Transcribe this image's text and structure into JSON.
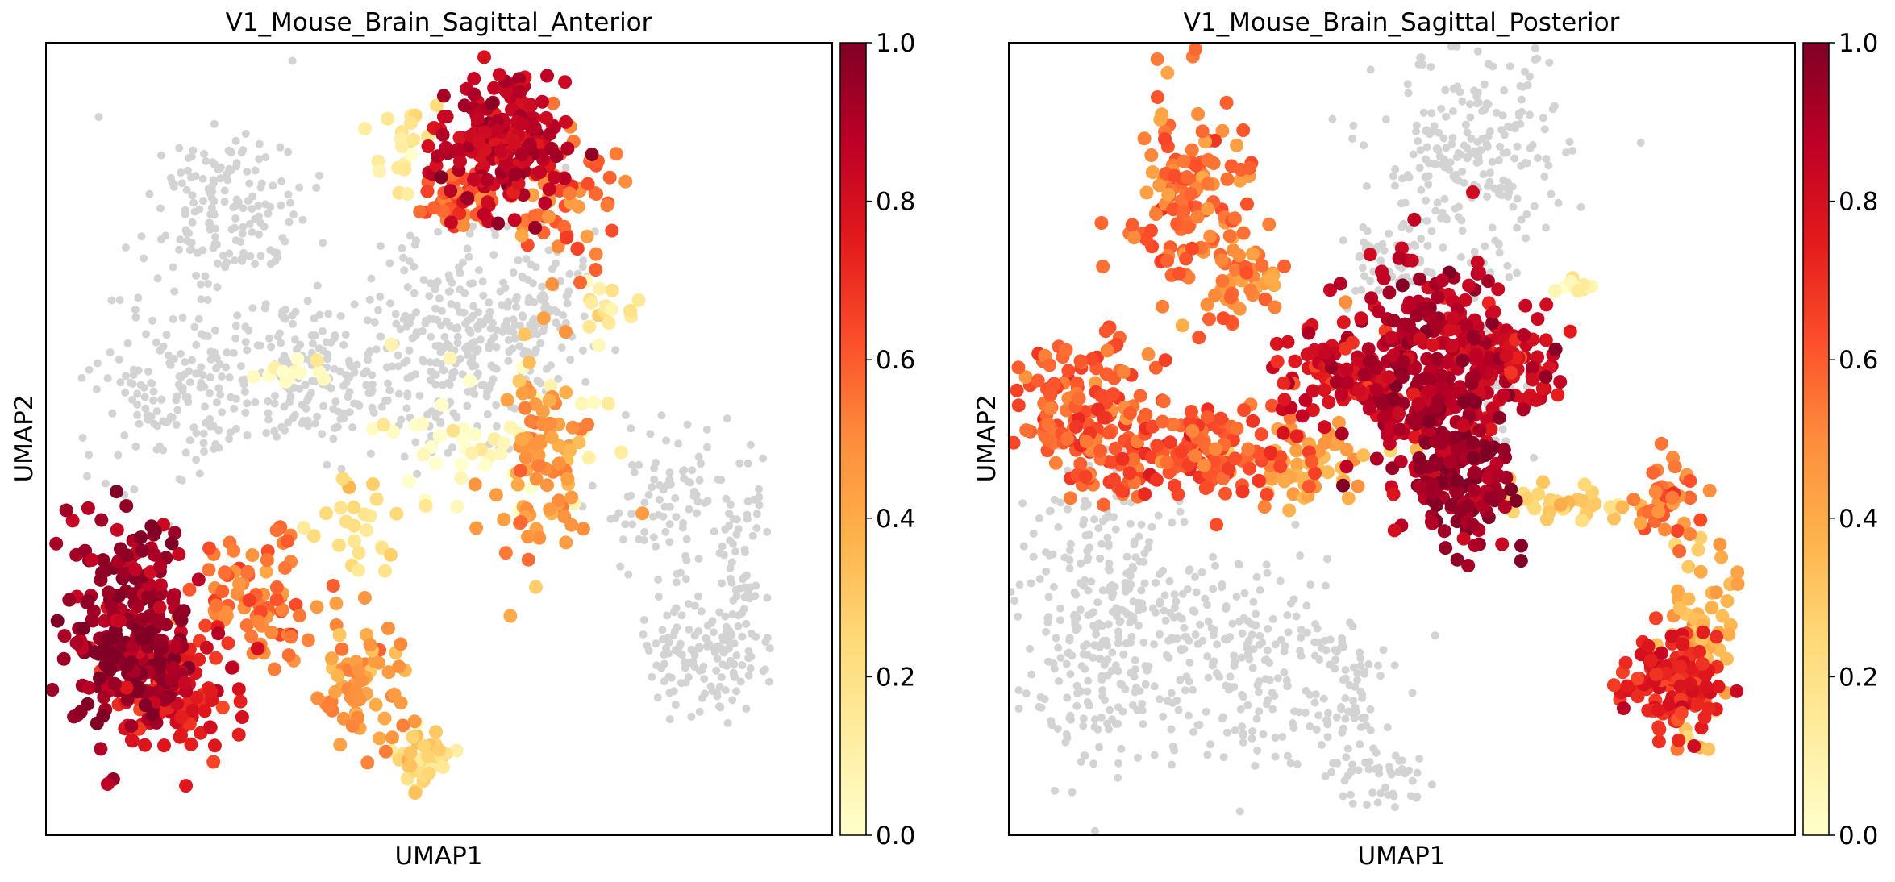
{
  "chart_data": [
    {
      "type": "scatter",
      "title": "V1_Mouse_Brain_Sagittal_Anterior",
      "xlabel": "UMAP1",
      "ylabel": "UMAP2",
      "x_ticks": "none",
      "y_ticks": "none",
      "colorbar": {
        "colormap": "YlOrRd",
        "range": [
          0.0,
          1.0
        ],
        "ticks": [
          "0.0",
          "0.2",
          "0.4",
          "0.6",
          "0.8",
          "1.0"
        ]
      },
      "null_color": "#d3d3d3",
      "clusters": [
        {
          "x": 0.23,
          "y": 0.78,
          "sx": 0.05,
          "sy": 0.06,
          "n": 180,
          "v": null
        },
        {
          "x": 0.17,
          "y": 0.56,
          "sx": 0.06,
          "sy": 0.05,
          "n": 160,
          "v": null
        },
        {
          "x": 0.36,
          "y": 0.58,
          "sx": 0.07,
          "sy": 0.05,
          "n": 180,
          "v": null
        },
        {
          "x": 0.52,
          "y": 0.62,
          "sx": 0.05,
          "sy": 0.07,
          "n": 220,
          "v": null
        },
        {
          "x": 0.62,
          "y": 0.66,
          "sx": 0.04,
          "sy": 0.05,
          "n": 120,
          "v": null
        },
        {
          "x": 0.8,
          "y": 0.42,
          "sx": 0.05,
          "sy": 0.05,
          "n": 100,
          "v": null
        },
        {
          "x": 0.83,
          "y": 0.22,
          "sx": 0.04,
          "sy": 0.04,
          "n": 120,
          "v": null
        },
        {
          "x": 0.88,
          "y": 0.32,
          "sx": 0.02,
          "sy": 0.06,
          "n": 60,
          "v": null
        },
        {
          "x": 0.58,
          "y": 0.87,
          "sx": 0.04,
          "sy": 0.04,
          "n": 200,
          "v": 0.85
        },
        {
          "x": 0.53,
          "y": 0.8,
          "sx": 0.02,
          "sy": 0.02,
          "n": 40,
          "v": 0.6
        },
        {
          "x": 0.66,
          "y": 0.8,
          "sx": 0.03,
          "sy": 0.05,
          "n": 60,
          "v": 0.55
        },
        {
          "x": 0.72,
          "y": 0.66,
          "sx": 0.02,
          "sy": 0.02,
          "n": 15,
          "v": 0.15
        },
        {
          "x": 0.45,
          "y": 0.88,
          "sx": 0.02,
          "sy": 0.03,
          "n": 20,
          "v": 0.15
        },
        {
          "x": 0.63,
          "y": 0.47,
          "sx": 0.03,
          "sy": 0.07,
          "n": 90,
          "v": 0.45
        },
        {
          "x": 0.55,
          "y": 0.5,
          "sx": 0.07,
          "sy": 0.04,
          "n": 50,
          "v": 0.05
        },
        {
          "x": 0.32,
          "y": 0.58,
          "sx": 0.02,
          "sy": 0.01,
          "n": 15,
          "v": 0.05
        },
        {
          "x": 0.11,
          "y": 0.26,
          "sx": 0.04,
          "sy": 0.07,
          "n": 260,
          "v": 0.95
        },
        {
          "x": 0.17,
          "y": 0.18,
          "sx": 0.04,
          "sy": 0.04,
          "n": 120,
          "v": 0.75
        },
        {
          "x": 0.27,
          "y": 0.3,
          "sx": 0.04,
          "sy": 0.04,
          "n": 80,
          "v": 0.55
        },
        {
          "x": 0.4,
          "y": 0.19,
          "sx": 0.03,
          "sy": 0.04,
          "n": 70,
          "v": 0.45
        },
        {
          "x": 0.48,
          "y": 0.09,
          "sx": 0.02,
          "sy": 0.02,
          "n": 45,
          "v": 0.25
        },
        {
          "x": 0.4,
          "y": 0.38,
          "sx": 0.03,
          "sy": 0.04,
          "n": 25,
          "v": 0.2
        }
      ]
    },
    {
      "type": "scatter",
      "title": "V1_Mouse_Brain_Sagittal_Posterior",
      "xlabel": "UMAP1",
      "ylabel": "UMAP2",
      "x_ticks": "none",
      "y_ticks": "none",
      "colorbar": {
        "colormap": "YlOrRd",
        "range": [
          0.0,
          1.0
        ],
        "ticks": [
          "0.0",
          "0.2",
          "0.4",
          "0.6",
          "0.8",
          "1.0"
        ]
      },
      "null_color": "#d3d3d3",
      "clusters": [
        {
          "x": 0.59,
          "y": 0.85,
          "sx": 0.06,
          "sy": 0.07,
          "n": 240,
          "v": null
        },
        {
          "x": 0.48,
          "y": 0.72,
          "sx": 0.03,
          "sy": 0.03,
          "n": 50,
          "v": null
        },
        {
          "x": 0.62,
          "y": 0.58,
          "sx": 0.02,
          "sy": 0.05,
          "n": 40,
          "v": null
        },
        {
          "x": 0.13,
          "y": 0.27,
          "sx": 0.06,
          "sy": 0.09,
          "n": 320,
          "v": null
        },
        {
          "x": 0.29,
          "y": 0.23,
          "sx": 0.06,
          "sy": 0.07,
          "n": 170,
          "v": null
        },
        {
          "x": 0.41,
          "y": 0.18,
          "sx": 0.04,
          "sy": 0.06,
          "n": 90,
          "v": null
        },
        {
          "x": 0.48,
          "y": 0.07,
          "sx": 0.03,
          "sy": 0.02,
          "n": 40,
          "v": null
        },
        {
          "x": 0.23,
          "y": 0.8,
          "sx": 0.04,
          "sy": 0.07,
          "n": 140,
          "v": 0.55
        },
        {
          "x": 0.3,
          "y": 0.7,
          "sx": 0.03,
          "sy": 0.03,
          "n": 40,
          "v": 0.5
        },
        {
          "x": 0.1,
          "y": 0.53,
          "sx": 0.04,
          "sy": 0.05,
          "n": 140,
          "v": 0.6
        },
        {
          "x": 0.25,
          "y": 0.48,
          "sx": 0.07,
          "sy": 0.03,
          "n": 150,
          "v": 0.62
        },
        {
          "x": 0.38,
          "y": 0.46,
          "sx": 0.05,
          "sy": 0.03,
          "n": 60,
          "v": 0.4
        },
        {
          "x": 0.43,
          "y": 0.58,
          "sx": 0.05,
          "sy": 0.03,
          "n": 90,
          "v": 0.8
        },
        {
          "x": 0.53,
          "y": 0.58,
          "sx": 0.05,
          "sy": 0.07,
          "n": 260,
          "v": 0.88
        },
        {
          "x": 0.58,
          "y": 0.45,
          "sx": 0.03,
          "sy": 0.05,
          "n": 140,
          "v": 0.95
        },
        {
          "x": 0.63,
          "y": 0.6,
          "sx": 0.04,
          "sy": 0.04,
          "n": 100,
          "v": 0.82
        },
        {
          "x": 0.7,
          "y": 0.42,
          "sx": 0.04,
          "sy": 0.01,
          "n": 40,
          "v": 0.3
        },
        {
          "x": 0.84,
          "y": 0.42,
          "sx": 0.02,
          "sy": 0.03,
          "n": 40,
          "v": 0.55
        },
        {
          "x": 0.88,
          "y": 0.25,
          "sx": 0.02,
          "sy": 0.06,
          "n": 70,
          "v": 0.35
        },
        {
          "x": 0.84,
          "y": 0.19,
          "sx": 0.03,
          "sy": 0.03,
          "n": 140,
          "v": 0.72
        },
        {
          "x": 0.72,
          "y": 0.69,
          "sx": 0.01,
          "sy": 0.01,
          "n": 10,
          "v": 0.1
        }
      ]
    }
  ]
}
